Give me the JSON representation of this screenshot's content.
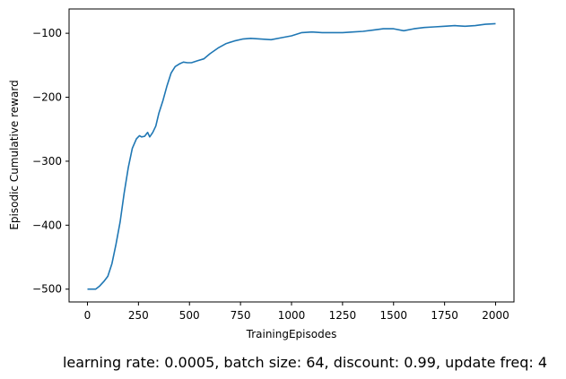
{
  "chart_data": {
    "type": "line",
    "xlabel": "TrainingEpisodes",
    "ylabel": "Episodic Cumulative reward",
    "caption": "learning rate: 0.0005, batch size: 64, discount: 0.99, update freq: 4",
    "xlim": [
      -90,
      2090
    ],
    "ylim": [
      -520,
      -62
    ],
    "x_ticks": [
      0,
      250,
      500,
      750,
      1000,
      1250,
      1500,
      1750,
      2000
    ],
    "x_tick_labels": [
      "0",
      "250",
      "500",
      "750",
      "1000",
      "1250",
      "1500",
      "1750",
      "2000"
    ],
    "y_ticks": [
      -500,
      -400,
      -300,
      -200,
      -100
    ],
    "y_tick_labels": [
      "−500",
      "−400",
      "−300",
      "−200",
      "−100"
    ],
    "grid": false,
    "legend": "none",
    "series": [
      {
        "color": "#1f77b4",
        "x": [
          0,
          40,
          60,
          80,
          100,
          120,
          140,
          160,
          180,
          200,
          220,
          240,
          255,
          265,
          280,
          295,
          305,
          320,
          335,
          350,
          370,
          390,
          410,
          430,
          450,
          470,
          490,
          510,
          540,
          570,
          600,
          640,
          680,
          720,
          760,
          800,
          850,
          900,
          950,
          1000,
          1050,
          1100,
          1150,
          1200,
          1250,
          1300,
          1350,
          1400,
          1450,
          1500,
          1550,
          1600,
          1650,
          1700,
          1750,
          1800,
          1850,
          1900,
          1950,
          2000
        ],
        "y": [
          -500,
          -500,
          -495,
          -488,
          -480,
          -460,
          -430,
          -395,
          -350,
          -310,
          -280,
          -265,
          -260,
          -262,
          -261,
          -255,
          -262,
          -255,
          -245,
          -225,
          -205,
          -182,
          -162,
          -152,
          -148,
          -145,
          -146,
          -146,
          -143,
          -140,
          -132,
          -123,
          -116,
          -112,
          -109,
          -108,
          -109,
          -110,
          -107,
          -104,
          -99,
          -98,
          -99,
          -99,
          -99,
          -98,
          -97,
          -95,
          -93,
          -93,
          -96,
          -93,
          -91,
          -90,
          -89,
          -88,
          -89,
          -88,
          -86,
          -85
        ]
      }
    ]
  }
}
